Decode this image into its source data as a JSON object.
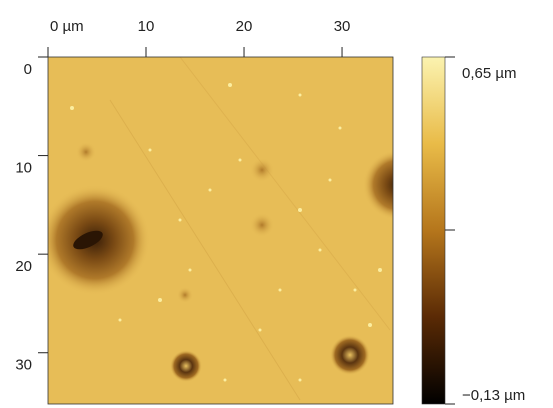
{
  "chart_data": {
    "type": "image",
    "xlim": [
      0,
      35.2
    ],
    "ylim": [
      0,
      35.2
    ],
    "xticks": [
      {
        "value": 0,
        "label": "0 µm"
      },
      10,
      20,
      30
    ],
    "yticks": [
      0,
      10,
      20,
      30
    ],
    "zlim": [
      -0.13,
      0.65
    ],
    "zticks": [
      {
        "value": 0.65,
        "label": "0,65 µm"
      },
      {
        "value": -0.13,
        "label": "−0,13 µm"
      }
    ]
  }
}
